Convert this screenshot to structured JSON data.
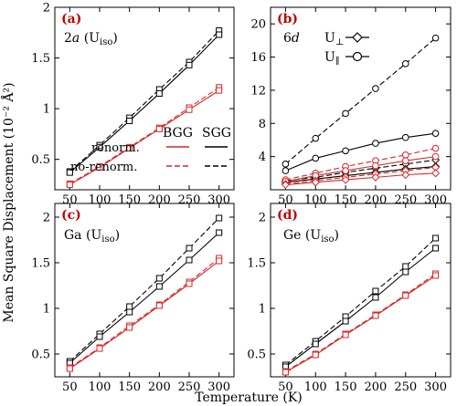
{
  "figure": {
    "ylabel": "Mean Square Displacement (10⁻² Å²)",
    "xlabel": "Temperature (K)",
    "legend": {
      "bgg": "BGG",
      "sgg": "SGG",
      "renorm": "renorm.",
      "norenorm": "no-renorm.",
      "uperp": "U⊥",
      "upar": "U∥"
    }
  },
  "colors": {
    "black": "#000000",
    "red": "#d62728",
    "panel_label": "#c00000"
  },
  "chart_data": [
    {
      "type": "line",
      "panel": "(a)",
      "subtitle": "2a (U_iso)",
      "x": [
        50,
        100,
        150,
        200,
        250,
        300
      ],
      "xlim": [
        25,
        325
      ],
      "ylim": [
        0.2,
        2.0
      ],
      "yticks": [
        0.5,
        1.0,
        1.5,
        2.0
      ],
      "xticks": [
        50,
        100,
        150,
        200,
        250,
        300
      ],
      "series": [
        {
          "model": "SGG",
          "method": "no-renorm.",
          "marker": "square",
          "values": [
            0.38,
            0.64,
            0.91,
            1.19,
            1.46,
            1.77
          ]
        },
        {
          "model": "SGG",
          "method": "renorm.",
          "marker": "square",
          "values": [
            0.37,
            0.62,
            0.88,
            1.15,
            1.43,
            1.73
          ]
        },
        {
          "model": "BGG",
          "method": "no-renorm.",
          "marker": "square",
          "values": [
            0.26,
            0.43,
            0.62,
            0.81,
            1.01,
            1.21
          ]
        },
        {
          "model": "BGG",
          "method": "renorm.",
          "marker": "square",
          "values": [
            0.25,
            0.42,
            0.61,
            0.8,
            0.99,
            1.18
          ]
        }
      ]
    },
    {
      "type": "line",
      "panel": "(b)",
      "subtitle": "6d",
      "x": [
        50,
        100,
        150,
        200,
        250,
        300
      ],
      "xlim": [
        25,
        325
      ],
      "ylim": [
        0,
        22
      ],
      "yticks": [
        4,
        8,
        12,
        16,
        20
      ],
      "xticks": [
        50,
        100,
        150,
        200,
        250,
        300
      ],
      "series": [
        {
          "model": "SGG",
          "method": "no-renorm.",
          "component": "U_par",
          "marker": "circle",
          "values": [
            3.1,
            6.2,
            9.2,
            12.2,
            15.2,
            18.3
          ]
        },
        {
          "model": "SGG",
          "method": "renorm.",
          "component": "U_par",
          "marker": "circle",
          "values": [
            2.3,
            3.8,
            4.7,
            5.6,
            6.3,
            6.8
          ]
        },
        {
          "model": "SGG",
          "method": "no-renorm.",
          "component": "U_perp",
          "marker": "diamond",
          "values": [
            1.1,
            1.5,
            2.1,
            2.6,
            3.1,
            3.6
          ]
        },
        {
          "model": "SGG",
          "method": "renorm.",
          "component": "U_perp",
          "marker": "diamond",
          "values": [
            0.9,
            1.3,
            1.7,
            2.1,
            2.5,
            2.8
          ]
        },
        {
          "model": "BGG",
          "method": "no-renorm.",
          "component": "U_par",
          "marker": "circle",
          "values": [
            1.2,
            2.0,
            2.8,
            3.5,
            4.2,
            5.0
          ]
        },
        {
          "model": "BGG",
          "method": "renorm.",
          "component": "U_par",
          "marker": "circle",
          "values": [
            1.0,
            1.7,
            2.3,
            2.9,
            3.5,
            4.0
          ]
        },
        {
          "model": "BGG",
          "method": "no-renorm.",
          "component": "U_perp",
          "marker": "diamond",
          "values": [
            0.7,
            1.1,
            1.5,
            1.9,
            2.3,
            2.7
          ]
        },
        {
          "model": "BGG",
          "method": "renorm.",
          "component": "U_perp",
          "marker": "diamond",
          "values": [
            0.6,
            0.9,
            1.2,
            1.5,
            1.8,
            2.0
          ]
        }
      ]
    },
    {
      "type": "line",
      "panel": "(c)",
      "subtitle": "Ga (U_iso)",
      "x": [
        50,
        100,
        150,
        200,
        250,
        300
      ],
      "xlim": [
        25,
        325
      ],
      "ylim": [
        0.25,
        2.15
      ],
      "yticks": [
        0.5,
        1.0,
        1.5,
        2.0
      ],
      "xticks": [
        50,
        100,
        150,
        200,
        250,
        300
      ],
      "series": [
        {
          "model": "SGG",
          "method": "no-renorm.",
          "marker": "square",
          "values": [
            0.42,
            0.72,
            1.02,
            1.33,
            1.66,
            1.99
          ]
        },
        {
          "model": "SGG",
          "method": "renorm.",
          "marker": "square",
          "values": [
            0.4,
            0.69,
            0.96,
            1.24,
            1.53,
            1.83
          ]
        },
        {
          "model": "BGG",
          "method": "no-renorm.",
          "marker": "square",
          "values": [
            0.35,
            0.57,
            0.81,
            1.04,
            1.29,
            1.55
          ]
        },
        {
          "model": "BGG",
          "method": "renorm.",
          "marker": "square",
          "values": [
            0.34,
            0.56,
            0.79,
            1.03,
            1.27,
            1.52
          ]
        }
      ]
    },
    {
      "type": "line",
      "panel": "(d)",
      "subtitle": "Ge (U_iso)",
      "x": [
        50,
        100,
        150,
        200,
        250,
        300
      ],
      "xlim": [
        25,
        325
      ],
      "ylim": [
        0.25,
        2.15
      ],
      "yticks": [
        0.5,
        1.0,
        1.5,
        2.0
      ],
      "xticks": [
        50,
        100,
        150,
        200,
        250,
        300
      ],
      "series": [
        {
          "model": "SGG",
          "method": "no-renorm.",
          "marker": "square",
          "values": [
            0.38,
            0.64,
            0.91,
            1.19,
            1.46,
            1.77
          ]
        },
        {
          "model": "SGG",
          "method": "renorm.",
          "marker": "square",
          "values": [
            0.36,
            0.61,
            0.86,
            1.12,
            1.4,
            1.66
          ]
        },
        {
          "model": "BGG",
          "method": "no-renorm.",
          "marker": "square",
          "values": [
            0.31,
            0.5,
            0.72,
            0.93,
            1.15,
            1.38
          ]
        },
        {
          "model": "BGG",
          "method": "renorm.",
          "marker": "square",
          "values": [
            0.3,
            0.49,
            0.71,
            0.92,
            1.14,
            1.36
          ]
        }
      ]
    }
  ]
}
